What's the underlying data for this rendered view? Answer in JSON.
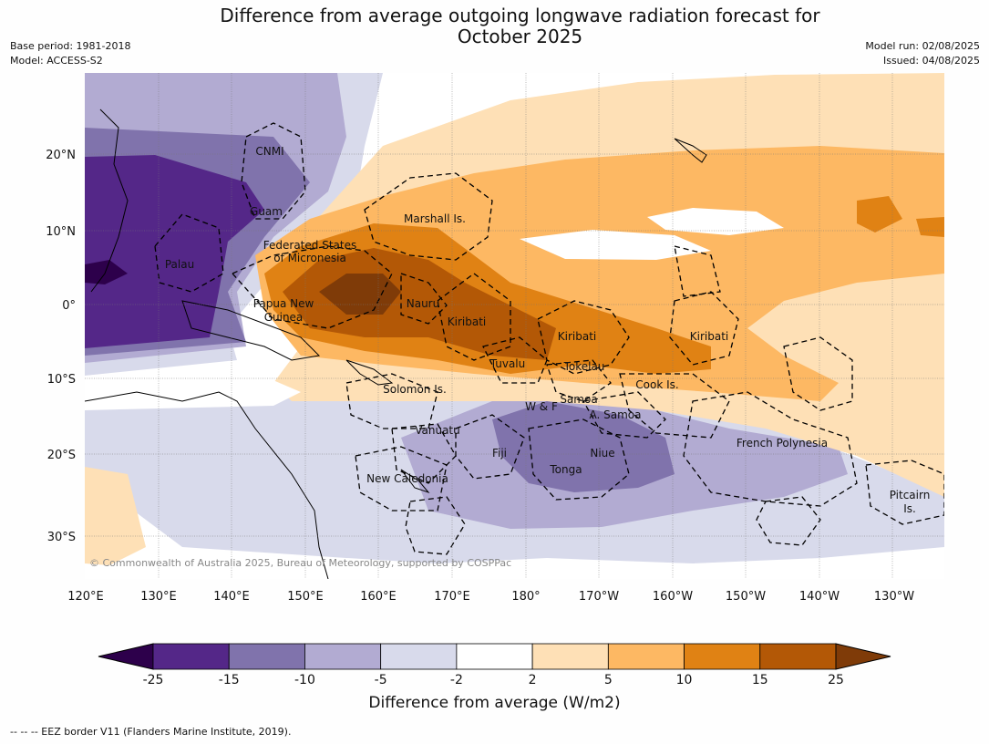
{
  "title_line1": "Difference from average outgoing longwave radiation forecast for",
  "title_line2": "October 2025",
  "meta_left": {
    "line1": "Base period: 1981-2018",
    "line2": "Model: ACCESS-S2"
  },
  "meta_right": {
    "line1": "Model run: 02/08/2025",
    "line2": "Issued: 04/08/2025"
  },
  "lon_ticks": [
    "120°E",
    "130°E",
    "140°E",
    "150°E",
    "160°E",
    "170°E",
    "180°",
    "170°W",
    "160°W",
    "150°W",
    "140°W",
    "130°W"
  ],
  "lat_ticks": [
    "20°N",
    "10°N",
    "0°",
    "10°S",
    "20°S",
    "30°S"
  ],
  "region_labels": {
    "cnmi": "CNMI",
    "guam": "Guam",
    "palau": "Palau",
    "fsm1": "Federated States",
    "fsm2": "of Micronesia",
    "marshall": "Marshall Is.",
    "png1": "Papua New",
    "png2": "Guinea",
    "nauru": "Nauru",
    "kiribati_w": "Kiribati",
    "kiribati_c": "Kiribati",
    "kiribati_e": "Kiribati",
    "tuvalu": "Tuvalu",
    "tokelau": "Tokelau",
    "solomon": "Solomon Is.",
    "cook": "Cook Is.",
    "samoa": "Samoa",
    "wf": "W & F",
    "asamoa": "A. Samoa",
    "vanuatu": "Vanuatu",
    "fiji": "Fiji",
    "niue": "Niue",
    "tonga": "Tonga",
    "newcal": "New Caledonia",
    "frpoly": "French Polynesia",
    "pitcairn1": "Pitcairn",
    "pitcairn2": "Is."
  },
  "copyright": "© Commonwealth of Australia 2025, Bureau of Meteorology, supported by COSPPac",
  "colorbar": {
    "ticks": [
      "-25",
      "-15",
      "-10",
      "-5",
      "-2",
      "2",
      "5",
      "10",
      "15",
      "25"
    ],
    "colors": [
      "#2d004b",
      "#542788",
      "#8073ac",
      "#b2abd2",
      "#d8daeb",
      "#ffffff",
      "#fee0b6",
      "#fdb863",
      "#e08214",
      "#b35806",
      "#7f3b08"
    ],
    "label": "Difference from average (W/m2)"
  },
  "footer": "--  --  -- EEZ border V11 (Flanders Marine Institute, 2019)."
}
